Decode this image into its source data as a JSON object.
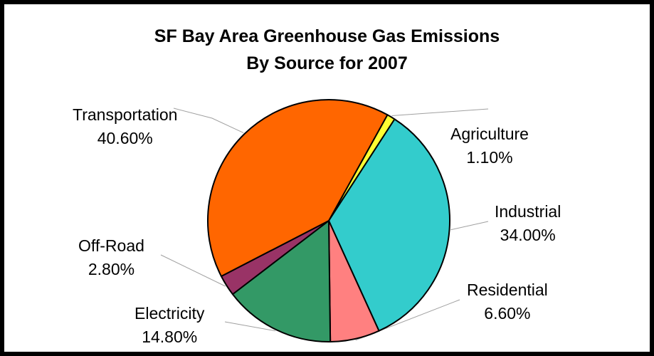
{
  "chart_data": {
    "type": "pie",
    "title_lines": [
      "SF Bay Area Greenhouse Gas Emissions",
      "By Source for 2007"
    ],
    "slices": [
      {
        "label": "Agriculture",
        "value": 1.1,
        "value_text": "1.10%",
        "color": "#ffff33"
      },
      {
        "label": "Industrial",
        "value": 34.0,
        "value_text": "34.00%",
        "color": "#33cccc"
      },
      {
        "label": "Residential",
        "value": 6.6,
        "value_text": "6.60%",
        "color": "#ff8080"
      },
      {
        "label": "Electricity",
        "value": 14.8,
        "value_text": "14.80%",
        "color": "#339966"
      },
      {
        "label": "Off-Road",
        "value": 2.8,
        "value_text": "2.80%",
        "color": "#993366"
      },
      {
        "label": "Transportation",
        "value": 40.6,
        "value_text": "40.60%",
        "color": "#ff6600"
      }
    ],
    "legend": "none",
    "label_position": "outside with leader lines"
  }
}
